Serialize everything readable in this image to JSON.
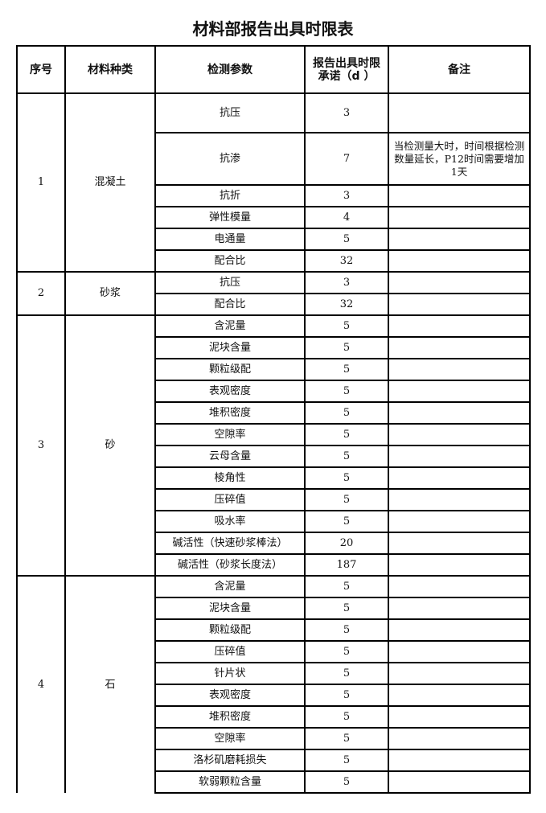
{
  "title": "材料部报告出具时限表",
  "headers": [
    "序号",
    "材料种类",
    "检测参数",
    "报告出具时限承诺（d ）",
    "备注"
  ],
  "groups": [
    {
      "seq": "1",
      "material": "混凝土",
      "items": [
        {
          "param": "抗压",
          "days": "3",
          "note": ""
        },
        {
          "param": "抗渗",
          "days": "7",
          "note": "当检测量大时，时间根据检测数量延长，P12时间需要增加1天"
        },
        {
          "param": "抗折",
          "days": "3",
          "note": ""
        },
        {
          "param": "弹性模量",
          "days": "4",
          "note": ""
        },
        {
          "param": "电通量",
          "days": "5",
          "note": ""
        },
        {
          "param": "配合比",
          "days": "32",
          "note": ""
        }
      ]
    },
    {
      "seq": "2",
      "material": "砂浆",
      "items": [
        {
          "param": "抗压",
          "days": "3",
          "note": ""
        },
        {
          "param": "配合比",
          "days": "32",
          "note": ""
        }
      ]
    },
    {
      "seq": "3",
      "material": "砂",
      "items": [
        {
          "param": "含泥量",
          "days": "5",
          "note": ""
        },
        {
          "param": "泥块含量",
          "days": "5",
          "note": ""
        },
        {
          "param": "颗粒级配",
          "days": "5",
          "note": ""
        },
        {
          "param": "表观密度",
          "days": "5",
          "note": ""
        },
        {
          "param": "堆积密度",
          "days": "5",
          "note": ""
        },
        {
          "param": "空隙率",
          "days": "5",
          "note": ""
        },
        {
          "param": "云母含量",
          "days": "5",
          "note": ""
        },
        {
          "param": "棱角性",
          "days": "5",
          "note": ""
        },
        {
          "param": "压碎值",
          "days": "5",
          "note": ""
        },
        {
          "param": "吸水率",
          "days": "5",
          "note": ""
        },
        {
          "param": "碱活性（快速砂浆棒法）",
          "days": "20",
          "note": ""
        },
        {
          "param": "碱活性（砂浆长度法）",
          "days": "187",
          "note": ""
        }
      ]
    },
    {
      "seq": "4",
      "material": "石",
      "items": [
        {
          "param": "含泥量",
          "days": "5",
          "note": ""
        },
        {
          "param": "泥块含量",
          "days": "5",
          "note": ""
        },
        {
          "param": "颗粒级配",
          "days": "5",
          "note": ""
        },
        {
          "param": "压碎值",
          "days": "5",
          "note": ""
        },
        {
          "param": "针片状",
          "days": "5",
          "note": ""
        },
        {
          "param": "表观密度",
          "days": "5",
          "note": ""
        },
        {
          "param": "堆积密度",
          "days": "5",
          "note": ""
        },
        {
          "param": "空隙率",
          "days": "5",
          "note": ""
        },
        {
          "param": "洛杉矶磨耗损失",
          "days": "5",
          "note": ""
        },
        {
          "param": "软弱颗粒含量",
          "days": "5",
          "note": ""
        }
      ]
    }
  ]
}
